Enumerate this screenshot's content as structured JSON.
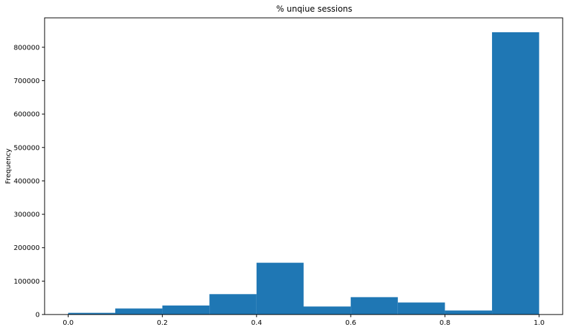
{
  "chart_data": {
    "type": "bar",
    "title": "% unqiue sessions",
    "xlabel": "",
    "ylabel": "Frequency",
    "bins": [
      {
        "x0": 0.0,
        "x1": 0.1,
        "value": 5000
      },
      {
        "x0": 0.1,
        "x1": 0.2,
        "value": 18000
      },
      {
        "x0": 0.2,
        "x1": 0.3,
        "value": 27000
      },
      {
        "x0": 0.3,
        "x1": 0.4,
        "value": 61000
      },
      {
        "x0": 0.4,
        "x1": 0.5,
        "value": 155000
      },
      {
        "x0": 0.5,
        "x1": 0.6,
        "value": 24000
      },
      {
        "x0": 0.6,
        "x1": 0.7,
        "value": 52000
      },
      {
        "x0": 0.7,
        "x1": 0.8,
        "value": 36000
      },
      {
        "x0": 0.8,
        "x1": 0.9,
        "value": 12000
      },
      {
        "x0": 0.9,
        "x1": 1.0,
        "value": 845000
      }
    ],
    "xlim": [
      -0.05,
      1.05
    ],
    "ylim": [
      0,
      888000
    ],
    "xticks": [
      0.0,
      0.2,
      0.4,
      0.6,
      0.8,
      1.0
    ],
    "xtick_labels": [
      "0.0",
      "0.2",
      "0.4",
      "0.6",
      "0.8",
      "1.0"
    ],
    "yticks": [
      0,
      100000,
      200000,
      300000,
      400000,
      500000,
      600000,
      700000,
      800000
    ],
    "ytick_labels": [
      "0",
      "100000",
      "200000",
      "300000",
      "400000",
      "500000",
      "600000",
      "700000",
      "800000"
    ],
    "bar_color": "#1f77b4",
    "grid": false,
    "legend": "none"
  }
}
